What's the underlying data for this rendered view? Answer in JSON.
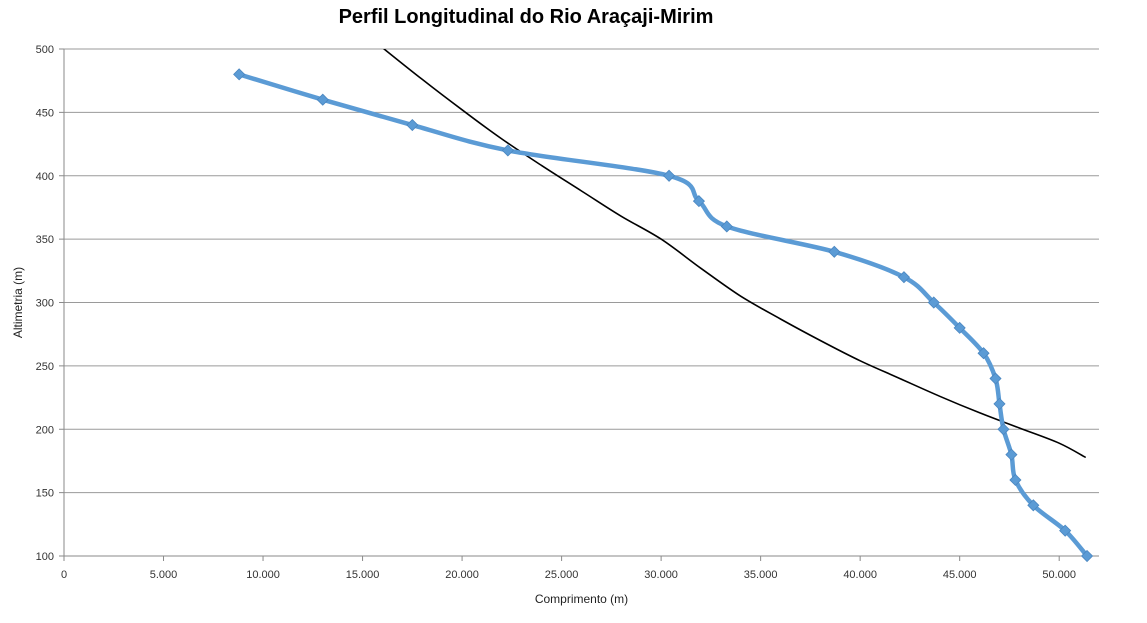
{
  "chart_data": {
    "type": "line",
    "title": "Perfil Longitudinal do Rio Araçaji-Mirim",
    "xlabel": "Comprimento (m)",
    "ylabel": "Altimetria (m)",
    "xlim": [
      0,
      52000
    ],
    "ylim": [
      100,
      500
    ],
    "x_ticks": [
      0,
      5000,
      10000,
      15000,
      20000,
      25000,
      30000,
      35000,
      40000,
      45000,
      50000
    ],
    "x_tick_labels": [
      "0",
      "5.000",
      "10.000",
      "15.000",
      "20.000",
      "25.000",
      "30.000",
      "35.000",
      "40.000",
      "45.000",
      "50.000"
    ],
    "y_ticks": [
      100,
      150,
      200,
      250,
      300,
      350,
      400,
      450,
      500
    ],
    "y_tick_labels": [
      "100",
      "150",
      "200",
      "250",
      "300",
      "350",
      "400",
      "450",
      "500"
    ],
    "grid": "horizontal",
    "legend": "none",
    "series": [
      {
        "color": "#5b9bd5",
        "marker": "diamond",
        "smooth": true,
        "x": [
          8800,
          13000,
          17500,
          22300,
          30400,
          31900,
          33300,
          38700,
          42200,
          43700,
          45000,
          46200,
          46800,
          47000,
          47200,
          47600,
          47800,
          48700,
          50300,
          51400
        ],
        "y": [
          480,
          460,
          440,
          420,
          400,
          380,
          360,
          340,
          320,
          300,
          280,
          260,
          240,
          220,
          200,
          180,
          160,
          140,
          120,
          100
        ]
      },
      {
        "color": "#000000",
        "marker": "none",
        "smooth": true,
        "x": [
          16000,
          18000,
          20000,
          22000,
          24000,
          26000,
          28000,
          30000,
          32000,
          34000,
          36000,
          38000,
          40000,
          42000,
          44000,
          46000,
          48000,
          50000,
          51300
        ],
        "y": [
          501,
          476,
          452,
          429,
          408,
          388,
          368,
          350,
          327,
          305,
          287,
          270,
          254,
          240,
          226,
          213,
          201,
          189,
          178
        ]
      }
    ]
  }
}
